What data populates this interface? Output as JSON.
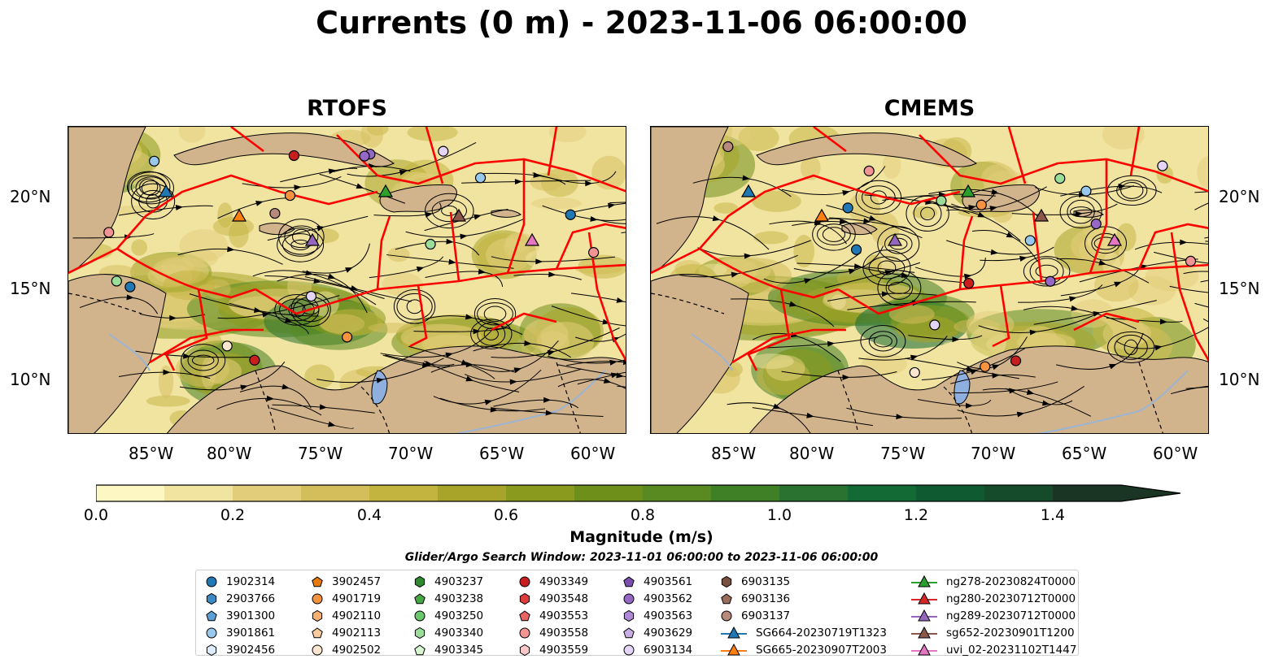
{
  "figure": {
    "title": "Currents (0 m) - 2023-11-06 06:00:00"
  },
  "panels": [
    {
      "title": "RTOFS"
    },
    {
      "title": "CMEMS"
    }
  ],
  "axes": {
    "lon_labels": [
      "85°W",
      "80°W",
      "75°W",
      "70°W",
      "65°W",
      "60°W"
    ],
    "lat_labels": [
      "20°N",
      "15°N",
      "10°N"
    ]
  },
  "colorbar": {
    "label": "Magnitude (m/s)",
    "ticks": [
      "0.0",
      "0.2",
      "0.4",
      "0.6",
      "0.8",
      "1.0",
      "1.2",
      "1.4"
    ],
    "range": [
      0.0,
      1.5
    ],
    "extend": "max",
    "colors": [
      "#fdf7c3",
      "#f1e3a0",
      "#e2cd7a",
      "#d4be5c",
      "#c3b43f",
      "#a8a42a",
      "#8a9a1e",
      "#6e8f1a",
      "#588a21",
      "#3f7f25",
      "#2a7230",
      "#136a34",
      "#0f5a30",
      "#154a2b",
      "#1a3524"
    ]
  },
  "search_window": "Glider/Argo Search Window: 2023-11-01 06:00:00 to 2023-11-06 06:00:00",
  "legend": {
    "columns": [
      [
        {
          "label": "1902314",
          "marker": "circle",
          "color": "#1f77b4"
        },
        {
          "label": "2903766",
          "marker": "hexagon",
          "color": "#3a8ac4"
        },
        {
          "label": "3901300",
          "marker": "pentagon",
          "color": "#5c9fd4"
        },
        {
          "label": "3901861",
          "marker": "circle",
          "color": "#98c8ec"
        },
        {
          "label": "3902456",
          "marker": "hexagon",
          "color": "#dcecfa"
        }
      ],
      [
        {
          "label": "3902457",
          "marker": "pentagon",
          "color": "#e87a0c"
        },
        {
          "label": "4901719",
          "marker": "circle",
          "color": "#f59340"
        },
        {
          "label": "4902110",
          "marker": "hexagon",
          "color": "#f8b072"
        },
        {
          "label": "4902113",
          "marker": "pentagon",
          "color": "#fbcb9e"
        },
        {
          "label": "4902502",
          "marker": "circle",
          "color": "#fde6cf"
        }
      ],
      [
        {
          "label": "4903237",
          "marker": "hexagon",
          "color": "#2d8a2d"
        },
        {
          "label": "4903238",
          "marker": "pentagon",
          "color": "#45a845"
        },
        {
          "label": "4903250",
          "marker": "circle",
          "color": "#6cc86c"
        },
        {
          "label": "4903340",
          "marker": "hexagon",
          "color": "#9ade9a"
        },
        {
          "label": "4903345",
          "marker": "pentagon",
          "color": "#d6f5d0"
        }
      ],
      [
        {
          "label": "4903349",
          "marker": "circle",
          "color": "#c81e1e"
        },
        {
          "label": "4903548",
          "marker": "hexagon",
          "color": "#dc3c3c"
        },
        {
          "label": "4903553",
          "marker": "pentagon",
          "color": "#e86464"
        },
        {
          "label": "4903558",
          "marker": "circle",
          "color": "#f29494"
        },
        {
          "label": "4903559",
          "marker": "hexagon",
          "color": "#fac8c8"
        }
      ],
      [
        {
          "label": "4903561",
          "marker": "pentagon",
          "color": "#7a4fb0"
        },
        {
          "label": "4903562",
          "marker": "circle",
          "color": "#9468c4"
        },
        {
          "label": "4903563",
          "marker": "hexagon",
          "color": "#ae8ad6"
        },
        {
          "label": "4903629",
          "marker": "pentagon",
          "color": "#c9aee6"
        },
        {
          "label": "6903134",
          "marker": "circle",
          "color": "#e4d4f5"
        }
      ],
      [
        {
          "label": "6903135",
          "marker": "hexagon",
          "color": "#7a5040"
        },
        {
          "label": "6903136",
          "marker": "pentagon",
          "color": "#9a6e5c"
        },
        {
          "label": "6903137",
          "marker": "circle",
          "color": "#b88a7c"
        },
        {
          "label": "SG664-20230719T1323",
          "marker": "triangle-line",
          "color": "#1f77b4"
        },
        {
          "label": "SG665-20230907T2003",
          "marker": "triangle-line",
          "color": "#ff7f0e"
        }
      ],
      [
        {
          "label": "ng278-20230824T0000",
          "marker": "triangle-line",
          "color": "#2ca02c"
        },
        {
          "label": "ng280-20230712T0000",
          "marker": "triangle-line",
          "color": "#d62728"
        },
        {
          "label": "ng289-20230712T0000",
          "marker": "triangle-line",
          "color": "#9467bd"
        },
        {
          "label": "sg652-20230901T1200",
          "marker": "triangle-line",
          "color": "#8c564b"
        },
        {
          "label": "uvi_02-20231102T1447",
          "marker": "triangle-line",
          "color": "#e377c2"
        }
      ]
    ]
  },
  "map_colors": {
    "land": "#d2b48c",
    "eez_lines": "#ff0000",
    "streamlines": "#000000",
    "lakes": "#8fb0de",
    "rivers": "#9cb4d4"
  }
}
